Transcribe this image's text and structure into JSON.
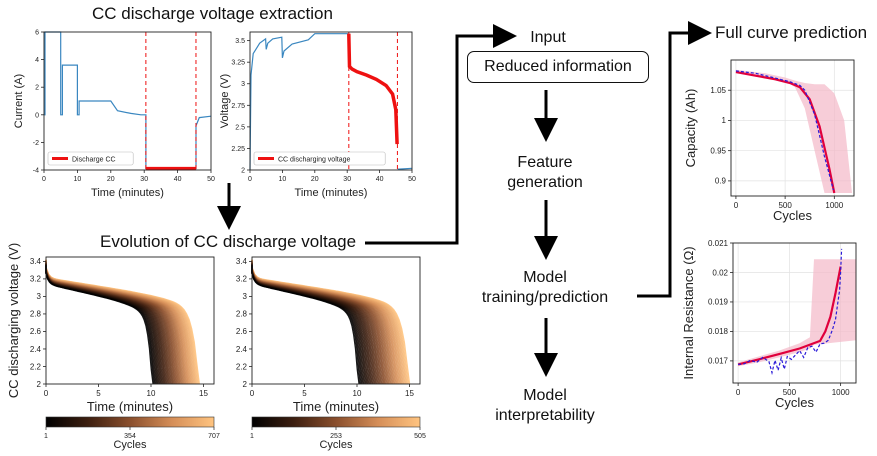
{
  "headings": {
    "extraction": "CC discharge voltage extraction",
    "evolution": "Evolution of CC discharge voltage",
    "full_curve": "Full curve prediction"
  },
  "pipeline": {
    "input": "Input",
    "reduced": "Reduced information",
    "feature_line1": "Feature",
    "feature_line2": "generation",
    "model_line1": "Model",
    "model_line2": "training/prediction",
    "interp_line1": "Model",
    "interp_line2": "interpretability"
  },
  "colors": {
    "cc_highlight": "#ee1111",
    "trace": "#3a87c0",
    "prediction": "#e0003c",
    "measured": "#2a1ad8",
    "band": "#f4b8c8",
    "arrow": "#000000"
  },
  "chart_data": [
    {
      "type": "line",
      "xlabel": "Time (minutes)",
      "ylabel": "Current (A)",
      "xlim": [
        0,
        50
      ],
      "ylim": [
        -4,
        6
      ],
      "xticks": [
        0,
        10,
        20,
        30,
        40,
        50
      ],
      "yticks": [
        -4,
        -2,
        0,
        2,
        4,
        6
      ],
      "legend": "Discharge CC",
      "legend_position": "lower-left",
      "series": [
        {
          "x": [
            0,
            0.3,
            0.3,
            5,
            5,
            5.5,
            5.5,
            10,
            10,
            10.5,
            10.5,
            20,
            22,
            26,
            29,
            30.5,
            30.5,
            45.5,
            45.5,
            46.5,
            50
          ],
          "y": [
            0,
            0,
            6,
            6,
            0,
            0,
            3.6,
            3.6,
            0,
            0,
            1,
            1,
            0.3,
            0.1,
            0,
            0,
            -3.9,
            -3.9,
            -0.8,
            -0.2,
            -0.1
          ]
        }
      ],
      "highlight": {
        "x_start": 30.5,
        "x_end": 45.5,
        "y": -3.9
      }
    },
    {
      "type": "line",
      "xlabel": "Time (minutes)",
      "ylabel": "Voltage (V)",
      "xlim": [
        0,
        50
      ],
      "ylim": [
        2.0,
        3.6
      ],
      "xticks": [
        0,
        10,
        20,
        30,
        40,
        50
      ],
      "yticks": [
        2.0,
        2.25,
        2.5,
        2.75,
        3.0,
        3.25,
        3.5
      ],
      "legend": "CC discharging voltage",
      "legend_position": "lower-left",
      "series": [
        {
          "x": [
            0,
            0.3,
            1,
            3,
            4.8,
            5,
            5.5,
            7,
            9.8,
            10,
            10.5,
            13,
            18,
            20,
            29,
            30.3
          ],
          "y": [
            2.0,
            3.1,
            3.35,
            3.47,
            3.52,
            3.4,
            3.47,
            3.52,
            3.54,
            3.3,
            3.38,
            3.46,
            3.51,
            3.58,
            3.58,
            3.58
          ]
        },
        {
          "x": [
            45.6,
            46,
            50
          ],
          "y": [
            2.01,
            2.01,
            2.02
          ]
        }
      ],
      "cc_curve": {
        "x": [
          30.5,
          30.7,
          31.5,
          33,
          36,
          39,
          42,
          44,
          45,
          45.4
        ],
        "y": [
          3.58,
          3.2,
          3.17,
          3.14,
          3.1,
          3.05,
          2.98,
          2.88,
          2.7,
          2.3
        ]
      }
    },
    {
      "type": "line",
      "ylabel": "CC discharging voltage (V)",
      "xlabel": "Time (minutes)",
      "xlim": [
        0,
        16
      ],
      "ylim": [
        2.0,
        3.45
      ],
      "xticks": [
        0,
        5,
        10,
        15
      ],
      "yticks": [
        2.0,
        2.2,
        2.4,
        2.6,
        2.8,
        3.0,
        3.2,
        3.4
      ],
      "colorbar": {
        "label": "Cycles",
        "ticks": [
          "1",
          "354",
          "707"
        ]
      }
    },
    {
      "type": "line",
      "xlabel": "Time (minutes)",
      "xlim": [
        0,
        16
      ],
      "ylim": [
        2.0,
        3.45
      ],
      "xticks": [
        0,
        5,
        10,
        15
      ],
      "yticks": [
        2.0,
        2.2,
        2.4,
        2.6,
        2.8,
        3.0,
        3.2,
        3.4
      ],
      "colorbar": {
        "label": "Cycles",
        "ticks": [
          "1",
          "253",
          "505"
        ]
      }
    },
    {
      "type": "line",
      "xlabel": "Cycles",
      "ylabel": "Capacity (Ah)",
      "xlim": [
        -50,
        1200
      ],
      "ylim": [
        0.875,
        1.1
      ],
      "xticks": [
        0,
        500,
        1000
      ],
      "yticks": [
        0.9,
        0.95,
        1.0,
        1.05
      ],
      "series": [
        {
          "name": "prediction",
          "x": [
            0,
            200,
            400,
            550,
            650,
            750,
            850,
            950,
            1000
          ],
          "y": [
            1.08,
            1.074,
            1.068,
            1.062,
            1.055,
            1.035,
            0.99,
            0.92,
            0.88
          ]
        },
        {
          "name": "measured",
          "x": [
            0,
            200,
            400,
            550,
            650,
            700,
            750,
            800,
            850,
            900,
            950,
            990
          ],
          "y": [
            1.082,
            1.078,
            1.07,
            1.064,
            1.058,
            1.05,
            1.03,
            1.01,
            0.975,
            0.94,
            0.91,
            0.885
          ]
        }
      ],
      "band": {
        "x": [
          0,
          300,
          500,
          600,
          700,
          800,
          900,
          1000,
          1100,
          1180
        ],
        "upper": [
          1.084,
          1.078,
          1.071,
          1.066,
          1.062,
          1.06,
          1.06,
          1.045,
          1.0,
          0.88
        ],
        "lower": [
          1.078,
          1.072,
          1.066,
          1.055,
          1.02,
          0.95,
          0.88,
          0.88,
          0.88,
          0.88
        ]
      }
    },
    {
      "type": "line",
      "xlabel": "Cycles",
      "ylabel": "Internal Resistance (Ω)",
      "xlim": [
        -50,
        1150
      ],
      "ylim": [
        0.01625,
        0.021
      ],
      "xticks": [
        0,
        500,
        1000
      ],
      "yticks": [
        0.017,
        0.018,
        0.019,
        0.02,
        0.021
      ],
      "series": [
        {
          "name": "prediction",
          "x": [
            0,
            200,
            400,
            600,
            800,
            850,
            900,
            950,
            1000
          ],
          "y": [
            0.01688,
            0.01705,
            0.01723,
            0.01742,
            0.01768,
            0.018,
            0.0185,
            0.0193,
            0.0202
          ]
        },
        {
          "name": "measured",
          "x": [
            0,
            60,
            120,
            180,
            240,
            300,
            330,
            360,
            390,
            420,
            450,
            480,
            520,
            560,
            600,
            640,
            680,
            720,
            760,
            800,
            840,
            880,
            920,
            950,
            970,
            990,
            1000,
            1010
          ],
          "y": [
            0.01688,
            0.0169,
            0.01702,
            0.01695,
            0.01712,
            0.01698,
            0.0166,
            0.01702,
            0.01668,
            0.0171,
            0.01672,
            0.01715,
            0.01705,
            0.0172,
            0.01735,
            0.01712,
            0.01745,
            0.0175,
            0.0173,
            0.01758,
            0.0176,
            0.0177,
            0.01805,
            0.0184,
            0.0189,
            0.0194,
            0.02,
            0.0208
          ]
        }
      ],
      "band": {
        "x": [
          0,
          200,
          400,
          600,
          700,
          740,
          1150
        ],
        "upper": [
          0.01695,
          0.01715,
          0.01735,
          0.0176,
          0.0178,
          0.02045,
          0.02045
        ],
        "lower": [
          0.01682,
          0.01695,
          0.01712,
          0.0173,
          0.01742,
          0.01755,
          0.0177
        ]
      }
    }
  ]
}
